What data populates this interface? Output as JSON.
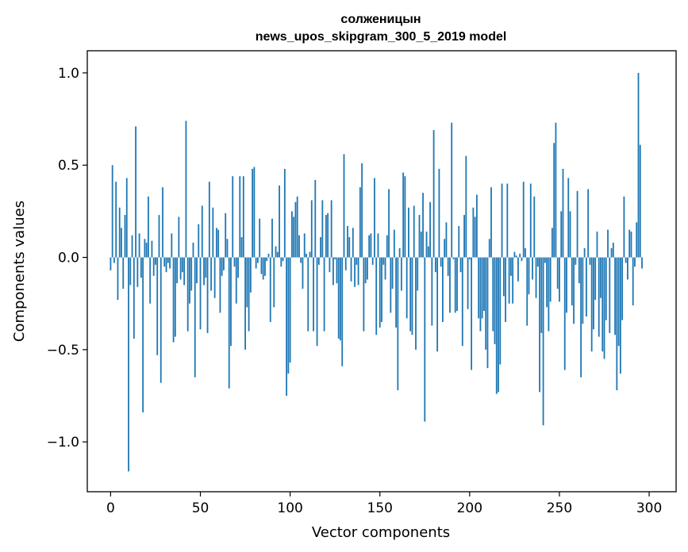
{
  "chart_data": {
    "type": "bar",
    "title_lines": [
      "солженицын",
      "news_upos_skipgram_300_5_2019 model"
    ],
    "xlabel": "Vector components",
    "ylabel": "Components values",
    "xlim": [
      -13,
      315
    ],
    "ylim": [
      -1.27,
      1.12
    ],
    "xticks": [
      0,
      50,
      100,
      150,
      200,
      250,
      300
    ],
    "xtick_labels": [
      "0",
      "50",
      "100",
      "150",
      "200",
      "250",
      "300"
    ],
    "yticks": [
      -1.0,
      -0.5,
      0.0,
      0.5,
      1.0
    ],
    "ytick_labels": [
      "−1.0",
      "−0.5",
      "0.0",
      "0.5",
      "1.0"
    ],
    "bar_color": "#1f77b4",
    "grid": false,
    "legend": "none",
    "values": [
      -0.07,
      0.5,
      -0.03,
      0.41,
      -0.23,
      0.27,
      0.16,
      -0.17,
      0.23,
      0.43,
      -1.16,
      -0.15,
      0.12,
      -0.44,
      0.71,
      -0.16,
      0.13,
      -0.11,
      -0.84,
      0.1,
      0.08,
      0.33,
      -0.25,
      0.09,
      -0.1,
      -0.04,
      -0.53,
      0.23,
      -0.68,
      0.38,
      -0.05,
      -0.08,
      -0.03,
      -0.06,
      0.13,
      -0.46,
      -0.43,
      -0.14,
      0.22,
      -0.12,
      -0.08,
      -0.15,
      0.74,
      -0.4,
      -0.25,
      -0.18,
      0.08,
      -0.65,
      -0.14,
      0.18,
      -0.39,
      0.28,
      -0.15,
      -0.11,
      -0.41,
      0.41,
      -0.18,
      0.27,
      -0.22,
      0.16,
      0.15,
      -0.3,
      -0.1,
      -0.07,
      0.24,
      0.1,
      -0.71,
      -0.48,
      0.44,
      -0.05,
      -0.25,
      -0.11,
      0.44,
      0.11,
      0.44,
      -0.5,
      -0.27,
      -0.4,
      -0.19,
      0.48,
      0.49,
      -0.06,
      -0.03,
      0.21,
      -0.09,
      -0.12,
      -0.1,
      -0.02,
      0.02,
      -0.35,
      0.21,
      -0.27,
      0.06,
      0.03,
      0.39,
      -0.05,
      -0.02,
      0.48,
      -0.75,
      -0.63,
      -0.57,
      0.25,
      0.22,
      0.3,
      0.33,
      0.12,
      -0.03,
      -0.17,
      0.13,
      0.02,
      -0.4,
      0.03,
      0.31,
      -0.4,
      0.42,
      -0.48,
      -0.04,
      0.11,
      0.31,
      -0.4,
      0.23,
      0.24,
      -0.08,
      0.31,
      -0.15,
      -0.01,
      -0.14,
      -0.44,
      -0.45,
      -0.59,
      0.56,
      -0.07,
      0.17,
      0.11,
      -0.13,
      0.16,
      -0.16,
      -0.04,
      -0.15,
      0.38,
      0.51,
      -0.4,
      -0.14,
      -0.12,
      0.12,
      0.13,
      -0.04,
      0.43,
      -0.42,
      0.13,
      -0.38,
      -0.35,
      -0.04,
      -0.12,
      0.12,
      0.37,
      -0.3,
      -0.17,
      0.15,
      -0.38,
      -0.72,
      0.05,
      -0.18,
      0.46,
      0.44,
      -0.33,
      0.27,
      -0.4,
      -0.42,
      0.28,
      -0.5,
      -0.18,
      0.23,
      0.14,
      0.35,
      -0.89,
      0.14,
      0.06,
      0.3,
      -0.37,
      0.69,
      -0.08,
      -0.51,
      0.48,
      -0.05,
      -0.35,
      0.1,
      0.19,
      -0.1,
      -0.3,
      0.73,
      -0.01,
      -0.3,
      -0.29,
      0.17,
      -0.08,
      -0.48,
      0.23,
      0.55,
      -0.28,
      -0.01,
      -0.61,
      0.27,
      0.22,
      0.34,
      -0.33,
      -0.4,
      -0.33,
      -0.29,
      -0.5,
      -0.6,
      0.1,
      0.38,
      -0.4,
      -0.47,
      -0.74,
      -0.73,
      -0.58,
      0.4,
      -0.21,
      -0.35,
      0.4,
      -0.25,
      -0.1,
      -0.25,
      0.03,
      0.01,
      -0.13,
      0.02,
      -0.02,
      0.41,
      0.05,
      -0.37,
      -0.2,
      0.4,
      -0.12,
      0.33,
      -0.22,
      -0.05,
      -0.73,
      -0.41,
      -0.91,
      -0.03,
      -0.27,
      -0.4,
      -0.24,
      0.16,
      0.62,
      0.73,
      -0.17,
      -0.24,
      0.25,
      0.48,
      -0.61,
      -0.3,
      0.43,
      0.25,
      -0.26,
      -0.36,
      -0.04,
      0.36,
      -0.14,
      -0.65,
      -0.36,
      0.05,
      -0.32,
      0.37,
      -0.04,
      -0.51,
      -0.39,
      -0.23,
      0.14,
      -0.43,
      -0.22,
      -0.51,
      -0.55,
      -0.34,
      0.15,
      -0.41,
      0.05,
      0.08,
      -0.42,
      -0.72,
      -0.48,
      -0.63,
      -0.34,
      0.33,
      -0.03,
      -0.12,
      0.15,
      0.14,
      -0.26,
      -0.05,
      0.19,
      1.0,
      0.61,
      -0.06
    ]
  }
}
